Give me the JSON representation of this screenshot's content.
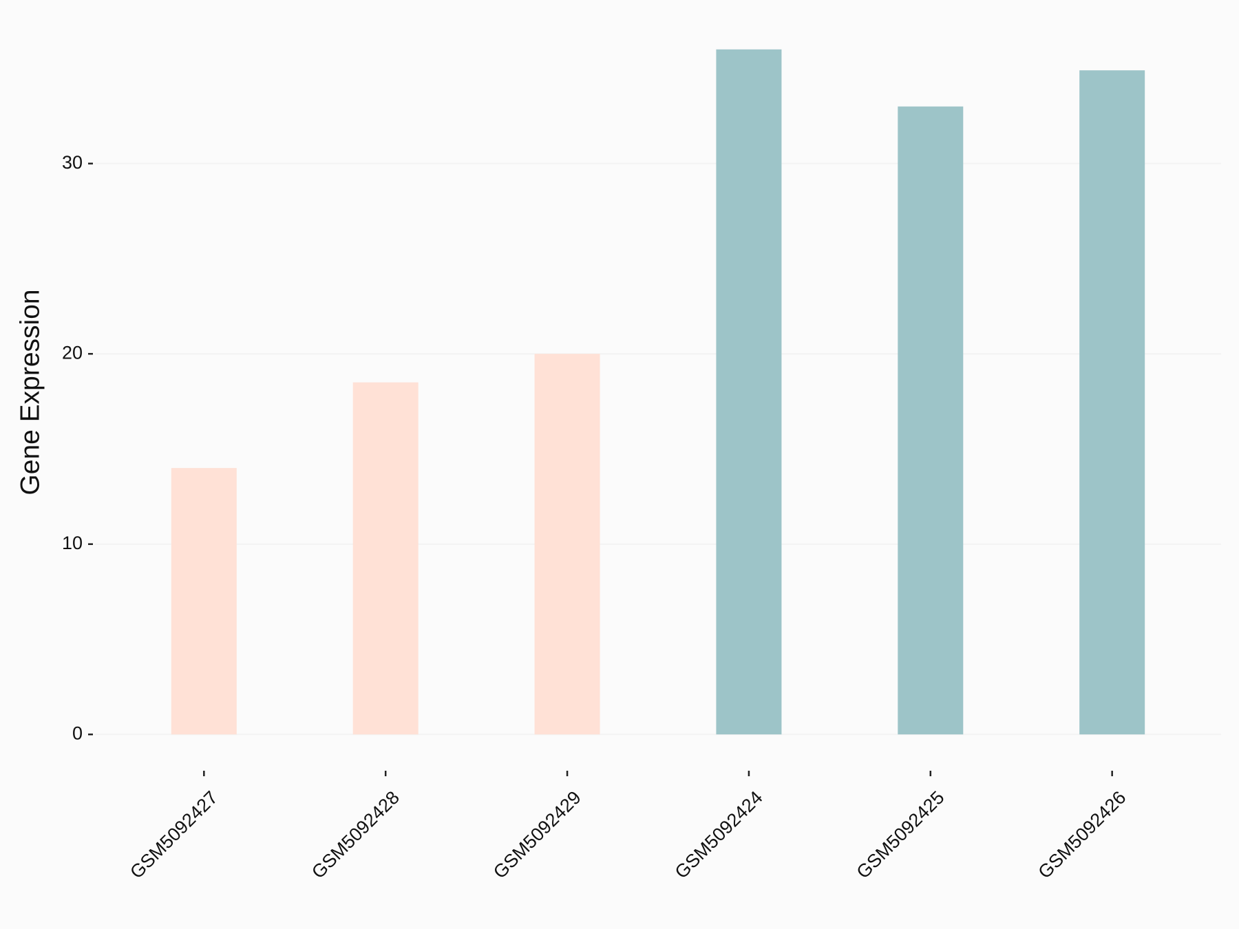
{
  "chart_data": {
    "type": "bar",
    "y_label": "Gene Expression",
    "categories": [
      "GSM5092427",
      "GSM5092428",
      "GSM5092429",
      "GSM5092424",
      "GSM5092425",
      "GSM5092426"
    ],
    "values": [
      14.0,
      18.5,
      20.0,
      36.0,
      33.0,
      34.9
    ],
    "colors": [
      "#FFE1D6",
      "#FFE1D6",
      "#FFE1D6",
      "#9DC4C8",
      "#9DC4C8",
      "#9DC4C8"
    ],
    "ylim": [
      -1.8,
      37.8
    ],
    "yticks": [
      0,
      10,
      20,
      30
    ],
    "grid": true
  }
}
